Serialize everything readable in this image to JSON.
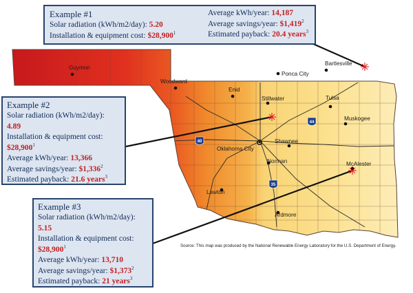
{
  "examples": [
    {
      "title": "Example #1",
      "radiation_label": "Solar radiation (kWh/m2/day):",
      "radiation_value": "5.20",
      "cost_label": "Installation & equipment cost:",
      "cost_value": "$28,900",
      "cost_note": "1",
      "kwh_label": "Average kWh/year:",
      "kwh_value": "14,187",
      "savings_label": "Average savings/year:",
      "savings_value": "$1,419",
      "savings_note": "2",
      "payback_label": "Estimated payback:",
      "payback_value": "20.4 years",
      "payback_note": "3"
    },
    {
      "title": "Example #2",
      "radiation_label": "Solar radiation (kWh/m2/day):",
      "radiation_value": "4.89",
      "cost_label": "Installation & equipment cost:",
      "cost_value": "$28,900",
      "cost_note": "1",
      "kwh_label": "Average kWh/year:",
      "kwh_value": "13,366",
      "savings_label": "Average savings/year:",
      "savings_value": "$1,336",
      "savings_note": "2",
      "payback_label": "Estimated payback:",
      "payback_value": "21.6 years",
      "payback_note": "3"
    },
    {
      "title": "Example #3",
      "radiation_label": "Solar radiation (kWh/m2/day):",
      "radiation_value": "5.15",
      "cost_label": "Installation & equipment cost:",
      "cost_value": "$28,900",
      "cost_note": "1",
      "kwh_label": "Average kWh/year:",
      "kwh_value": "13,710",
      "savings_label": "Average savings/year:",
      "savings_value": "$1,373",
      "savings_note": "2",
      "payback_label": "Estimated payback:",
      "payback_value": "21 years",
      "payback_note": "3"
    }
  ],
  "cities": {
    "guymon": "Guymon",
    "woodward": "Woodward",
    "enid": "Enid",
    "ponca_city": "Ponca City",
    "bartlesville": "Bartlesville",
    "stillwater": "Stillwater",
    "tulsa": "Tulsa",
    "muskogee": "Muskogee",
    "oklahoma_city": "Oklahoma City",
    "shawnee": "Shawnee",
    "norman": "Norman",
    "mcalester": "McAlester",
    "lawton": "Lawton",
    "ardmore": "Ardmore"
  },
  "highways": {
    "i40": "40",
    "i44": "44",
    "i35": "35"
  },
  "source": "Source: This map was produced by the National Renewable Energy Laboratory for the U.S. Department of Energy.",
  "colors": {
    "high_radiation": "#d42020",
    "mid_radiation": "#ef8f2a",
    "low_radiation": "#fbe79a",
    "box_fill": "#dde5f1",
    "box_border": "#26436b",
    "value_red": "#c21f1f",
    "marker": "#e02020"
  },
  "icons": {
    "marker": "starburst-marker-icon",
    "interstate": "interstate-shield-icon"
  }
}
